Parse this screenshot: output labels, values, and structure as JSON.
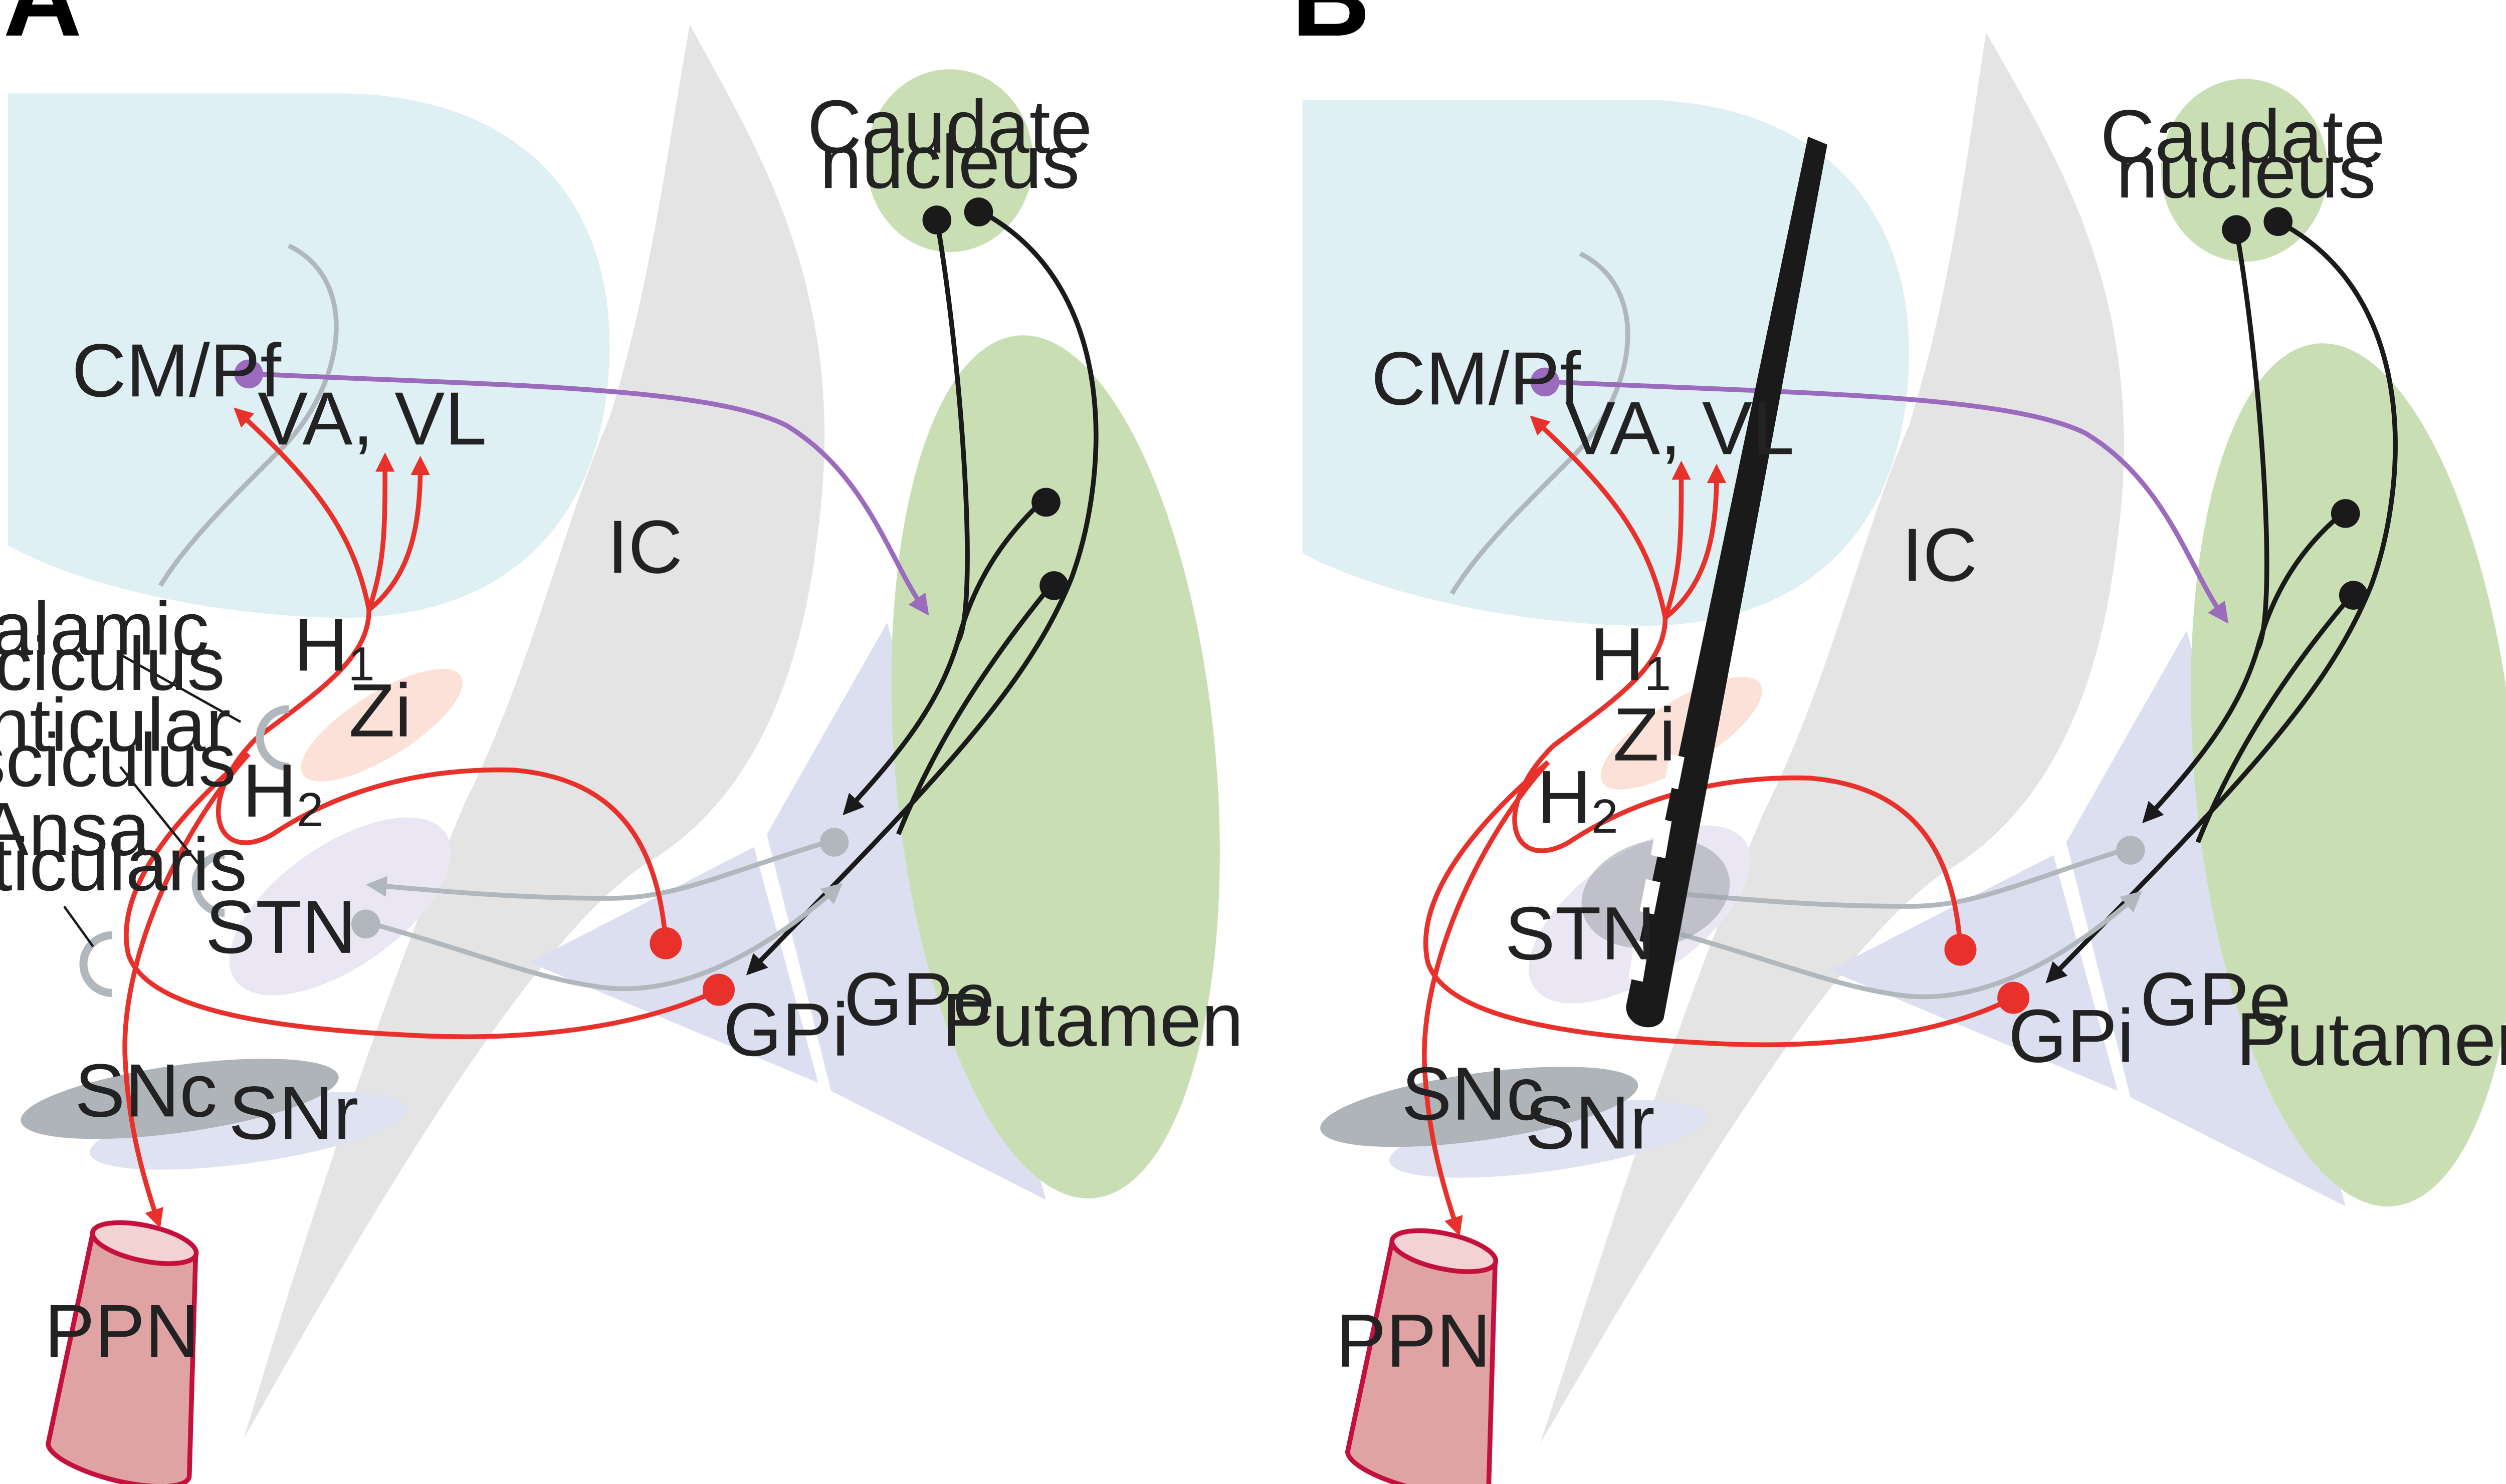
{
  "colors": {
    "thalamus": "#dff0f5",
    "internal_capsule": "#e4e4e4",
    "striatum": "#c9dfb3",
    "pallidum": "#dcdff0",
    "zona_incerta": "#fbe1d8",
    "stn": "#eae6f3",
    "snc": "#aeb4b8",
    "snr": "#dfe2f1",
    "ppn_fill": "#e0a3a3",
    "ppn_stroke": "#c4103c",
    "excitatory_red": "#e8312a",
    "striatal_black": "#1a1a1a",
    "gray_pathway": "#b1b8bd",
    "cm_purple": "#9b6bbd",
    "electrode": "#1a1a1a",
    "stimulation_field": "#9aa0a6"
  },
  "panels": [
    {
      "letter": "A",
      "labels": {
        "caudate_1": "Caudate",
        "caudate_2": "nucleus",
        "cm_pf": "CM/Pf",
        "va_vl": "VA, VL",
        "ic": "IC",
        "h1": "H",
        "h1_sub": "1",
        "h2": "H",
        "h2_sub": "2",
        "zi": "Zi",
        "stn": "STN",
        "gpi": "GPi",
        "gpe": "GPe",
        "putamen": "Putamen",
        "snc": "SNc",
        "snr": "SNr",
        "ppn": "PPN",
        "thalamic_1": "Thalamic",
        "thalamic_2": "fasciculus",
        "lenticular_1": "Lenticular",
        "lenticular_2": "fasciculus",
        "ansa_1": "Ansa",
        "ansa_2": "lenticularis"
      }
    },
    {
      "letter": "B",
      "labels": {
        "caudate_1": "Caudate",
        "caudate_2": "nucleus",
        "cm_pf": "CM/Pf",
        "va_vl": "VA, VL",
        "ic": "IC",
        "h1": "H",
        "h1_sub": "1",
        "h2": "H",
        "h2_sub": "2",
        "zi": "Zi",
        "stn": "STN",
        "gpi": "GPi",
        "gpe": "GPe",
        "putamen": "Putamen",
        "snc": "SNc",
        "snr": "SNr",
        "ppn": "PPN"
      }
    }
  ]
}
